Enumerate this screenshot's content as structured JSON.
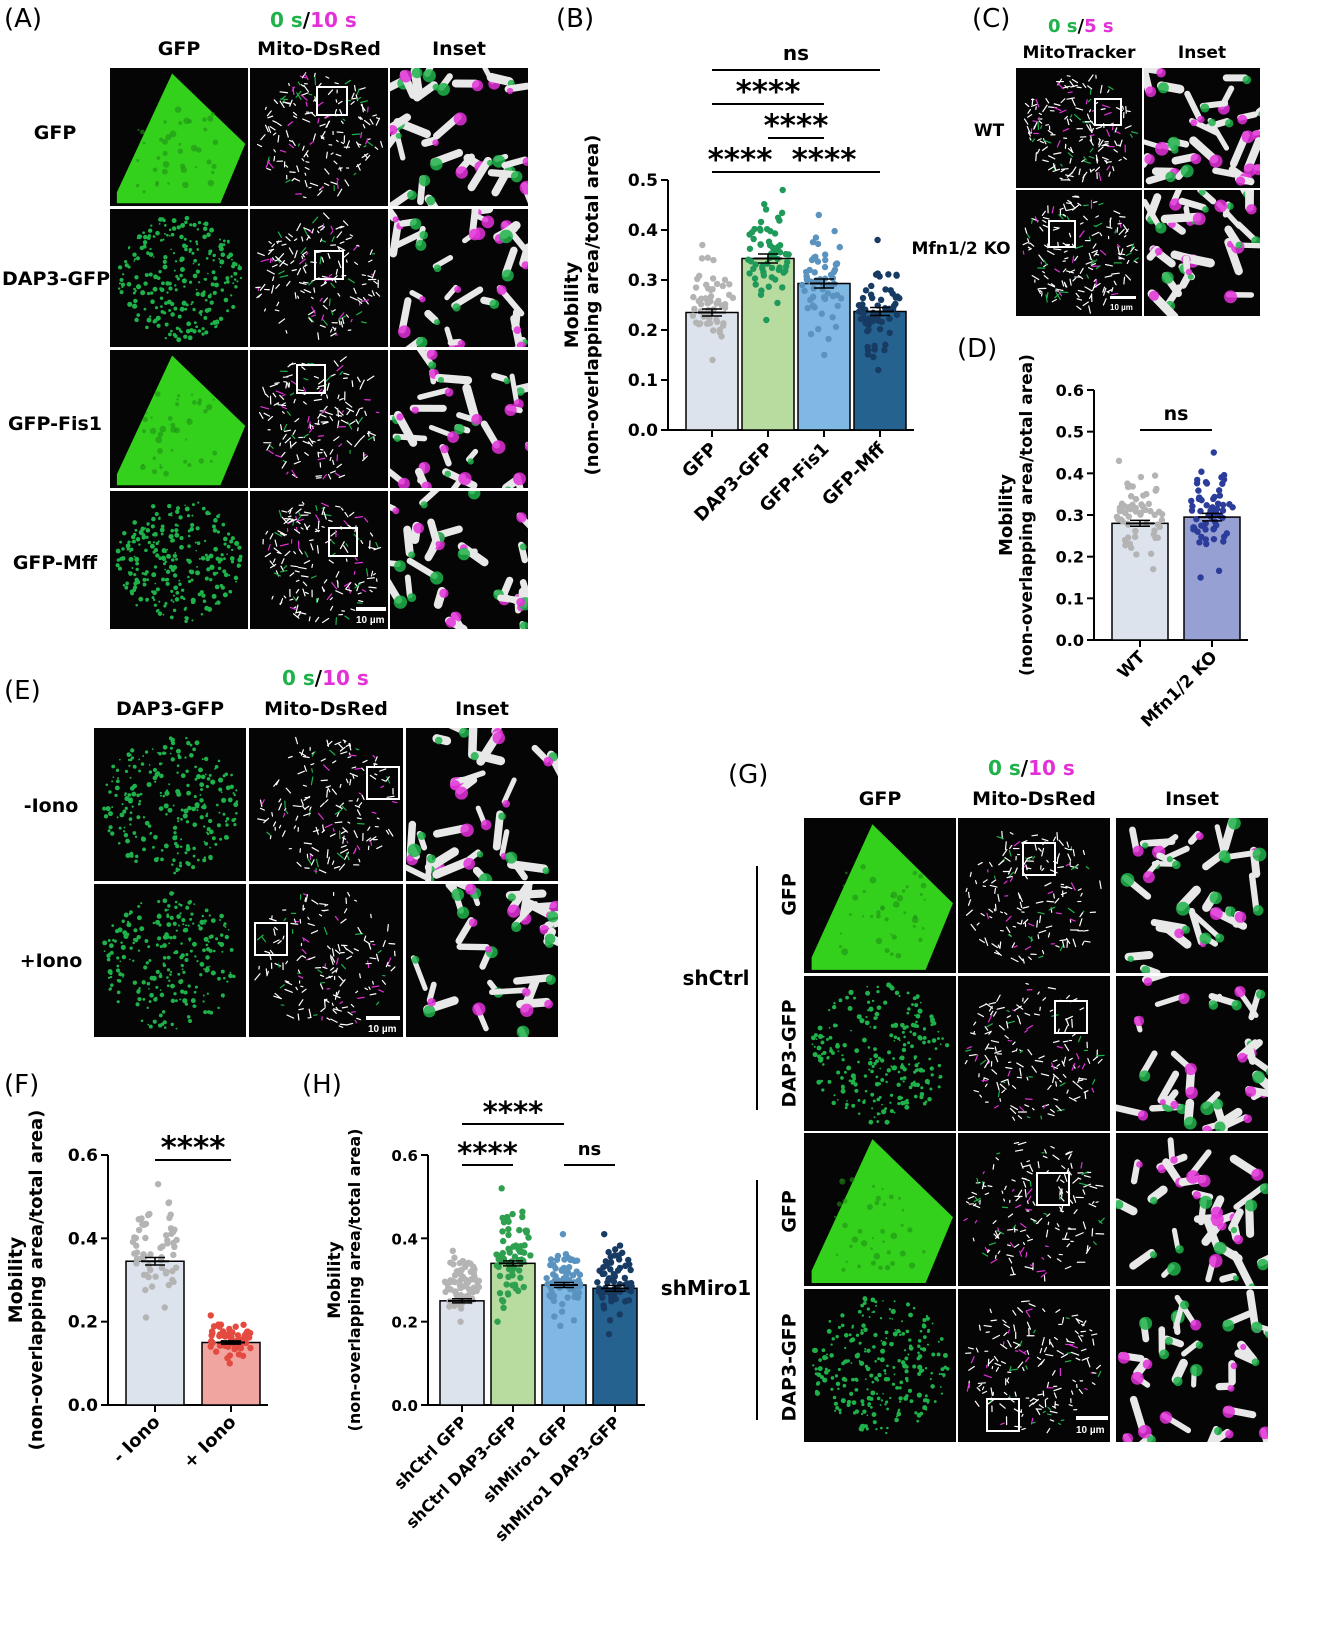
{
  "panels": {
    "A": {
      "label": "(A)",
      "time_start": "0 s",
      "time_sep": "/",
      "time_end": "10 s",
      "col_headers": [
        "GFP",
        "Mito-DsRed",
        "Inset"
      ],
      "rows": [
        "GFP",
        "DAP3-GFP",
        "GFP-Fis1",
        "GFP-Mff"
      ],
      "scale_bar": "10 µm"
    },
    "B": {
      "label": "(B)"
    },
    "C": {
      "label": "(C)",
      "time_start": "0 s",
      "time_sep": "/",
      "time_end": "5 s",
      "col_headers": [
        "MitoTracker",
        "Inset"
      ],
      "rows": [
        "WT",
        "Mfn1/2 KO"
      ],
      "scale_bar": "10 µm"
    },
    "D": {
      "label": "(D)"
    },
    "E": {
      "label": "(E)",
      "time_start": "0 s",
      "time_sep": "/",
      "time_end": "10 s",
      "col_headers": [
        "DAP3-GFP",
        "Mito-DsRed",
        "Inset"
      ],
      "rows": [
        "-Iono",
        "+Iono"
      ],
      "scale_bar": "10 µm"
    },
    "F": {
      "label": "(F)"
    },
    "G": {
      "label": "(G)",
      "time_start": "0 s",
      "time_sep": "/",
      "time_end": "10 s",
      "col_headers": [
        "GFP",
        "Mito-DsRed",
        "Inset"
      ],
      "rows": [
        "GFP",
        "DAP3-GFP",
        "GFP",
        "DAP3-GFP"
      ],
      "groups": [
        "shCtrl",
        "shMiro1"
      ],
      "scale_bar": "10 µm"
    },
    "H": {
      "label": "(H)"
    }
  },
  "colors": {
    "green": "#1fb14a",
    "magenta": "#e331d8",
    "gfp_fill": "#33d11c"
  },
  "chart_data": [
    {
      "id": "B",
      "type": "bar",
      "ylabel": "Mobility",
      "ylabel2": "(non-overlapping area/total area)",
      "ylim": [
        0,
        0.5
      ],
      "yticks": [
        "0.0",
        "0.1",
        "0.2",
        "0.3",
        "0.4",
        "0.5"
      ],
      "categories": [
        "GFP",
        "DAP3-GFP",
        "GFP-Fis1",
        "GFP-Mff"
      ],
      "values": [
        0.235,
        0.343,
        0.293,
        0.237
      ],
      "errors": [
        0.007,
        0.009,
        0.009,
        0.008
      ],
      "bar_colors": [
        "#dde3ec",
        "#b8dca0",
        "#7fb8e2",
        "#26628f"
      ],
      "dot_colors": [
        "#b4b4b4",
        "#1f9a5a",
        "#5a93bf",
        "#173b63"
      ],
      "spread": [
        [
          0.14,
          0.37
        ],
        [
          0.22,
          0.48
        ],
        [
          0.15,
          0.43
        ],
        [
          0.12,
          0.38
        ]
      ],
      "n": 60,
      "significance": [
        {
          "from": 0,
          "to": 3,
          "label": "ns"
        },
        {
          "from": 0,
          "to": 2,
          "label": "****"
        },
        {
          "from": 1,
          "to": 2,
          "label": "****"
        },
        {
          "from": 0,
          "to": 1,
          "label": "****"
        },
        {
          "from": 1,
          "to": 3,
          "label": "****"
        }
      ]
    },
    {
      "id": "D",
      "type": "bar",
      "ylabel": "Mobility",
      "ylabel2": "(non-overlapping area/total area)",
      "ylim": [
        0,
        0.6
      ],
      "yticks": [
        "0.0",
        "0.1",
        "0.2",
        "0.3",
        "0.4",
        "0.5",
        "0.6"
      ],
      "categories": [
        "WT",
        "Mfn1/2 KO"
      ],
      "values": [
        0.28,
        0.295
      ],
      "errors": [
        0.007,
        0.009
      ],
      "bar_colors": [
        "#dde3ec",
        "#97a0d2"
      ],
      "dot_colors": [
        "#b4b4b4",
        "#2b3c9b"
      ],
      "spread": [
        [
          0.17,
          0.43
        ],
        [
          0.15,
          0.45
        ]
      ],
      "n": 60,
      "significance": [
        {
          "from": 0,
          "to": 1,
          "label": "ns"
        }
      ]
    },
    {
      "id": "F",
      "type": "bar",
      "ylabel": "Mobility",
      "ylabel2": "(non-overlapping area/total area)",
      "ylim": [
        0,
        0.6
      ],
      "yticks": [
        "0.0",
        "0.2",
        "0.4",
        "0.6"
      ],
      "categories": [
        "- Iono",
        "+ Iono"
      ],
      "values": [
        0.345,
        0.15
      ],
      "errors": [
        0.009,
        0.004
      ],
      "bar_colors": [
        "#dde3ec",
        "#f0a5a0"
      ],
      "dot_colors": [
        "#b4b4b4",
        "#e44a3f"
      ],
      "spread": [
        [
          0.21,
          0.53
        ],
        [
          0.1,
          0.215
        ]
      ],
      "n": 60,
      "significance": [
        {
          "from": 0,
          "to": 1,
          "label": "****"
        }
      ]
    },
    {
      "id": "H",
      "type": "bar",
      "ylabel": "Mobility",
      "ylabel2": "(non-overlapping area/total area)",
      "ylim": [
        0,
        0.6
      ],
      "yticks": [
        "0.0",
        "0.2",
        "0.4",
        "0.6"
      ],
      "categories": [
        "shCtrl GFP",
        "shCtrl DAP3-GFP",
        "shMiro1 GFP",
        "shMiro1 DAP3-GFP"
      ],
      "values": [
        0.25,
        0.34,
        0.288,
        0.28
      ],
      "errors": [
        0.005,
        0.006,
        0.006,
        0.007
      ],
      "bar_colors": [
        "#dde3ec",
        "#b8dca0",
        "#7fb8e2",
        "#26628f"
      ],
      "dot_colors": [
        "#b4b4b4",
        "#2fa04f",
        "#5a93bf",
        "#173b63"
      ],
      "spread": [
        [
          0.2,
          0.37
        ],
        [
          0.2,
          0.52
        ],
        [
          0.19,
          0.41
        ],
        [
          0.17,
          0.41
        ]
      ],
      "n": 70,
      "significance": [
        {
          "from": 0,
          "to": 2,
          "label": "****"
        },
        {
          "from": 0,
          "to": 1,
          "label": "****"
        },
        {
          "from": 2,
          "to": 3,
          "label": "ns"
        }
      ]
    }
  ]
}
